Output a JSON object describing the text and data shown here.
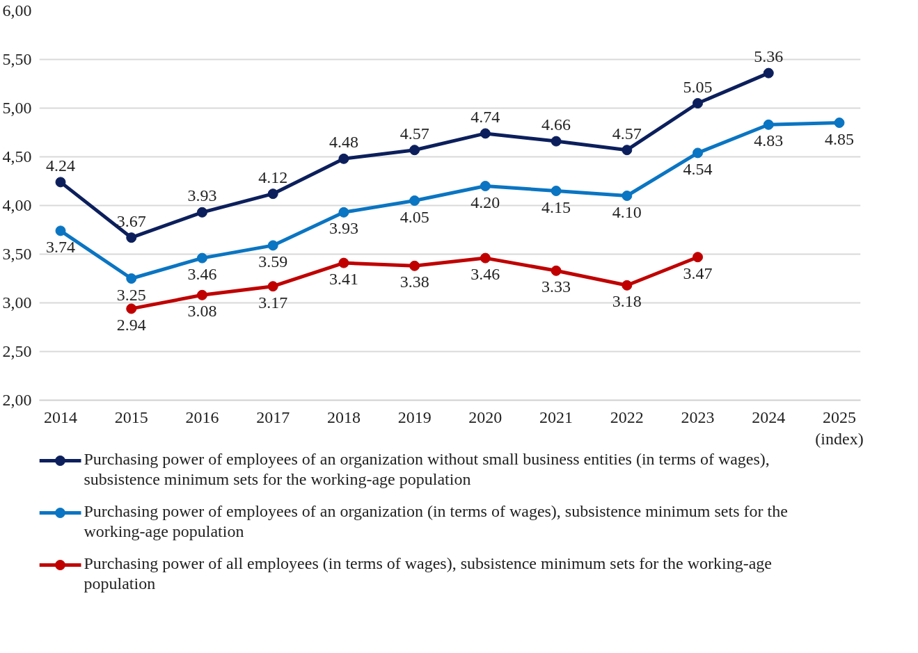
{
  "chart_data": {
    "type": "line",
    "categories": [
      "2014",
      "2015",
      "2016",
      "2017",
      "2018",
      "2019",
      "2020",
      "2021",
      "2022",
      "2023",
      "2024",
      "2025\n(index)"
    ],
    "series": [
      {
        "name": "Purchasing power of employees of an organization without small business entities (in terms of wages), subsistence minimum sets for the working-age population",
        "color": "#0c1f5c",
        "values": [
          4.24,
          3.67,
          3.93,
          4.12,
          4.48,
          4.57,
          4.74,
          4.66,
          4.57,
          5.05,
          5.36,
          null
        ],
        "value_labels": [
          "4.24",
          "3.67",
          "3.93",
          "4.12",
          "4.48",
          "4.57",
          "4.74",
          "4.66",
          "4.57",
          "5.05",
          "5.36",
          null
        ]
      },
      {
        "name": "Purchasing power of employees of an organization (in terms of wages), subsistence minimum sets for the working-age population",
        "color": "#0a75c2",
        "values": [
          3.74,
          3.25,
          3.46,
          3.59,
          3.93,
          4.05,
          4.2,
          4.15,
          4.1,
          4.54,
          4.83,
          4.85
        ],
        "value_labels": [
          "3.74",
          "3.25",
          "3.46",
          "3.59",
          "3.93",
          "4.05",
          "4.20",
          "4.15",
          "4.10",
          "4.54",
          "4.83",
          "4.85"
        ]
      },
      {
        "name": "Purchasing power of all employees (in terms of wages), subsistence minimum sets for the working-age population",
        "color": "#c00000",
        "values": [
          null,
          2.94,
          3.08,
          3.17,
          3.41,
          3.38,
          3.46,
          3.33,
          3.18,
          3.47,
          null,
          null
        ],
        "value_labels": [
          null,
          "2.94",
          "3.08",
          "3.17",
          "3.41",
          "3.38",
          "3.46",
          "3.33",
          "3.18",
          "3.47",
          null,
          null
        ]
      }
    ],
    "ylim": [
      2.0,
      6.0
    ],
    "yticks": [
      {
        "value": 2.0,
        "label": "2,00"
      },
      {
        "value": 2.5,
        "label": "2,50"
      },
      {
        "value": 3.0,
        "label": "3,00"
      },
      {
        "value": 3.5,
        "label": "3,50"
      },
      {
        "value": 4.0,
        "label": "4,00"
      },
      {
        "value": 4.5,
        "label": "4,50"
      },
      {
        "value": 5.0,
        "label": "5,00"
      },
      {
        "value": 5.5,
        "label": "5,50"
      },
      {
        "value": 6.0,
        "label": "6,00"
      }
    ],
    "grid": "y",
    "legend": "bottom",
    "marker": "circle",
    "line_style": "solid"
  }
}
